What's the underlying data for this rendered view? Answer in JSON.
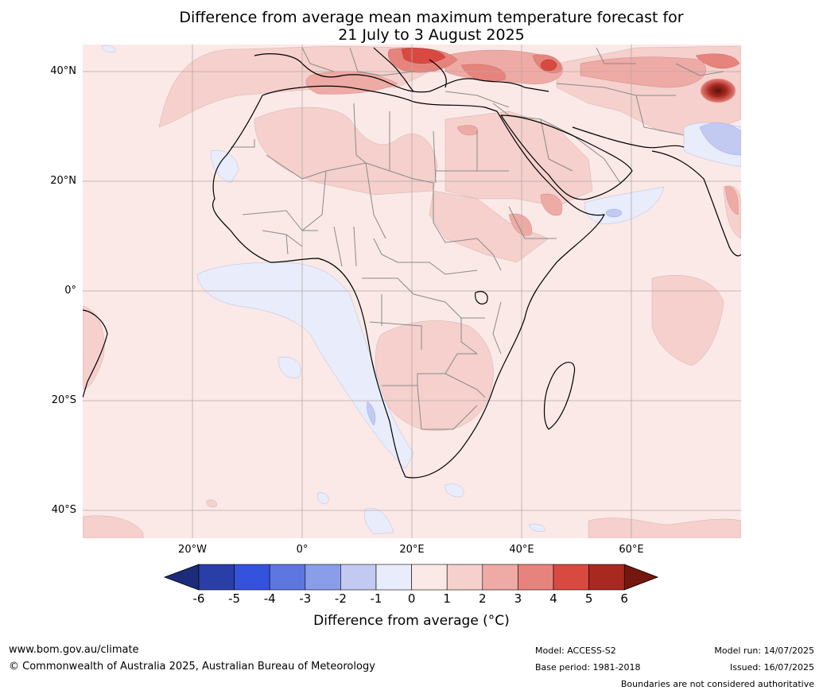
{
  "title": {
    "line1": "Difference from average mean maximum temperature forecast for",
    "line2": "21 July to 3 August 2025"
  },
  "axes": {
    "lat_labels": [
      "40°N",
      "20°N",
      "0°",
      "20°S",
      "40°S"
    ],
    "lon_labels": [
      "20°W",
      "0°",
      "20°E",
      "40°E",
      "60°E"
    ]
  },
  "colorbar": {
    "title": "Difference from average (°C)",
    "tick_labels": [
      "-6",
      "-5",
      "-4",
      "-3",
      "-2",
      "-1",
      "0",
      "1",
      "2",
      "3",
      "4",
      "5",
      "6"
    ],
    "colors": [
      "#1c2c7a",
      "#2a3ea8",
      "#3552dd",
      "#5d76e0",
      "#8a9de8",
      "#c2caf2",
      "#e8ecfb",
      "#fbe9e7",
      "#f5d0cc",
      "#eeaaa5",
      "#e6837d",
      "#d84a40",
      "#a8291f",
      "#74180f"
    ]
  },
  "footer": {
    "website": "www.bom.gov.au/climate",
    "copyright": "© Commonwealth of Australia 2025, Australian Bureau of Meteorology",
    "model": "Model: ACCESS-S2",
    "base_period": "Base period: 1981-2018",
    "model_run": "Model run: 14/07/2025",
    "issued": "Issued: 16/07/2025",
    "disclaimer": "Boundaries are not considered authoritative"
  }
}
